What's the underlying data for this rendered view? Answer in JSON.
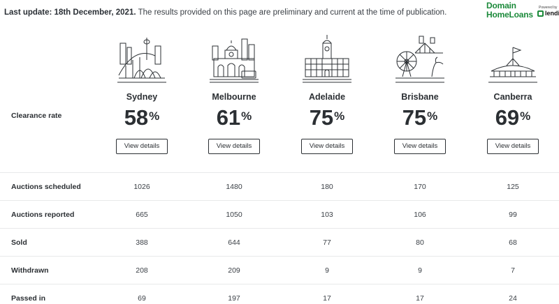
{
  "header": {
    "update_label": "Last update: 18th December, 2021.",
    "update_note": "The results provided on this page are preliminary and current at the time of publication."
  },
  "brand": {
    "line1": "Domain",
    "line2": "HomeLoans",
    "powered_by": "Powered by",
    "partner": "lendi",
    "color": "#1b8a3a"
  },
  "clearance": {
    "row_label": "Clearance rate",
    "percent_symbol": "%",
    "button_label": "View details"
  },
  "cities": [
    {
      "name": "Sydney",
      "rate": "58",
      "icon": "sydney-opera-house-harbour-bridge-icon"
    },
    {
      "name": "Melbourne",
      "rate": "61",
      "icon": "melbourne-flinders-street-station-icon"
    },
    {
      "name": "Adelaide",
      "rate": "75",
      "icon": "adelaide-town-hall-icon"
    },
    {
      "name": "Brisbane",
      "rate": "75",
      "icon": "brisbane-wheel-story-bridge-icon"
    },
    {
      "name": "Canberra",
      "rate": "69",
      "icon": "canberra-parliament-house-icon"
    }
  ],
  "stats": [
    {
      "label": "Auctions scheduled",
      "values": [
        "1026",
        "1480",
        "180",
        "170",
        "125"
      ]
    },
    {
      "label": "Auctions reported",
      "values": [
        "665",
        "1050",
        "103",
        "106",
        "99"
      ]
    },
    {
      "label": "Sold",
      "values": [
        "388",
        "644",
        "77",
        "80",
        "68"
      ]
    },
    {
      "label": "Withdrawn",
      "values": [
        "208",
        "209",
        "9",
        "9",
        "7"
      ]
    },
    {
      "label": "Passed in",
      "values": [
        "69",
        "197",
        "17",
        "17",
        "24"
      ]
    }
  ]
}
